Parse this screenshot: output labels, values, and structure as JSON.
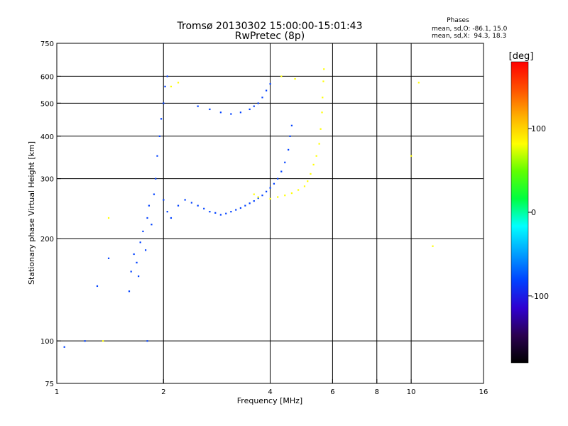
{
  "chart_data": {
    "type": "scatter",
    "title": "Tromsø 20130302 15:00:00-15:01:43",
    "subtitle": "RwPretec (8p)",
    "xlabel": "Frequency [MHz]",
    "ylabel": "Stationary phase Virtual Height [km]",
    "x_scale": "log",
    "y_scale": "log",
    "xlim": [
      1,
      16
    ],
    "ylim": [
      75,
      750
    ],
    "x_ticks": [
      1,
      2,
      4,
      6,
      8,
      10,
      16
    ],
    "y_ticks": [
      75,
      100,
      200,
      300,
      400,
      500,
      600,
      750
    ],
    "x_gridlines": [
      2,
      4,
      6,
      8,
      10
    ],
    "y_gridlines": [
      100,
      200,
      300,
      400,
      500,
      600
    ],
    "grid": true,
    "phase_stats": {
      "heading": "Phases",
      "line_o": "mean, sd,O: -86.1, 15.0",
      "line_x": "mean, sd,X:  94.3, 18.3"
    },
    "colorbar": {
      "label": "[deg]",
      "range": [
        -180,
        180
      ],
      "ticks": [
        100,
        0,
        -100
      ],
      "colors": [
        "#000000",
        "#2a0050",
        "#3000d0",
        "#0040ff",
        "#00a0ff",
        "#00ffff",
        "#00ff40",
        "#60ff00",
        "#ffff00",
        "#ffb000",
        "#ff5000",
        "#ff0000"
      ]
    },
    "series": [
      {
        "trace": "o-mode",
        "phase_deg": -90,
        "points": [
          [
            1.6,
            140
          ],
          [
            1.62,
            160
          ],
          [
            1.65,
            180
          ],
          [
            1.68,
            170
          ],
          [
            1.7,
            155
          ],
          [
            1.72,
            195
          ],
          [
            1.75,
            210
          ],
          [
            1.78,
            185
          ],
          [
            1.8,
            230
          ],
          [
            1.82,
            250
          ],
          [
            1.85,
            220
          ],
          [
            1.88,
            270
          ],
          [
            1.9,
            300
          ],
          [
            1.92,
            350
          ],
          [
            1.95,
            400
          ],
          [
            1.97,
            450
          ],
          [
            2.0,
            500
          ],
          [
            2.02,
            560
          ],
          [
            2.05,
            600
          ],
          [
            2.0,
            260
          ],
          [
            2.05,
            240
          ],
          [
            2.1,
            230
          ],
          [
            2.2,
            250
          ],
          [
            2.3,
            260
          ],
          [
            2.4,
            255
          ],
          [
            2.5,
            250
          ],
          [
            2.6,
            245
          ],
          [
            2.7,
            240
          ],
          [
            2.8,
            238
          ],
          [
            2.9,
            235
          ],
          [
            3.0,
            237
          ],
          [
            3.1,
            240
          ],
          [
            3.2,
            243
          ],
          [
            3.3,
            246
          ],
          [
            3.4,
            250
          ],
          [
            3.5,
            254
          ],
          [
            3.6,
            258
          ],
          [
            3.7,
            263
          ],
          [
            3.8,
            268
          ],
          [
            3.9,
            275
          ],
          [
            4.0,
            282
          ],
          [
            4.1,
            290
          ],
          [
            4.2,
            300
          ],
          [
            4.3,
            315
          ],
          [
            4.4,
            335
          ],
          [
            4.5,
            365
          ],
          [
            4.55,
            400
          ],
          [
            4.6,
            430
          ],
          [
            2.5,
            490
          ],
          [
            2.7,
            480
          ],
          [
            2.9,
            470
          ],
          [
            3.1,
            465
          ],
          [
            3.3,
            470
          ],
          [
            3.5,
            480
          ],
          [
            3.6,
            490
          ],
          [
            3.7,
            500
          ],
          [
            3.8,
            520
          ],
          [
            3.9,
            545
          ],
          [
            4.0,
            570
          ],
          [
            1.3,
            145
          ],
          [
            1.4,
            175
          ],
          [
            1.2,
            100
          ],
          [
            1.05,
            96
          ],
          [
            1.8,
            100
          ]
        ]
      },
      {
        "trace": "x-mode",
        "phase_deg": 95,
        "points": [
          [
            4.0,
            262
          ],
          [
            4.2,
            265
          ],
          [
            4.4,
            268
          ],
          [
            4.6,
            272
          ],
          [
            4.8,
            278
          ],
          [
            5.0,
            285
          ],
          [
            5.1,
            295
          ],
          [
            5.2,
            310
          ],
          [
            5.3,
            330
          ],
          [
            5.4,
            350
          ],
          [
            5.5,
            380
          ],
          [
            5.55,
            420
          ],
          [
            5.6,
            470
          ],
          [
            5.62,
            520
          ],
          [
            5.65,
            580
          ],
          [
            5.67,
            630
          ],
          [
            3.7,
            265
          ],
          [
            3.6,
            270
          ],
          [
            4.3,
            600
          ],
          [
            4.7,
            590
          ],
          [
            2.1,
            560
          ],
          [
            2.2,
            575
          ],
          [
            1.35,
            100
          ],
          [
            1.4,
            230
          ],
          [
            10.0,
            350
          ],
          [
            10.5,
            575
          ],
          [
            11.5,
            190
          ]
        ]
      }
    ]
  }
}
